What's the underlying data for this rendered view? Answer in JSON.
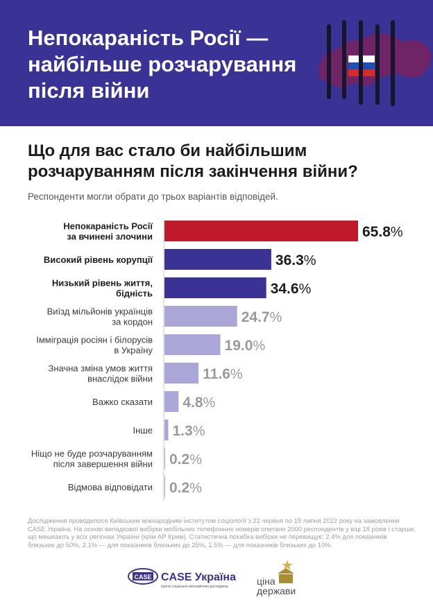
{
  "header": {
    "title_lines": [
      "Непокараність Росії —",
      "найбільше розчарування",
      "після війни"
    ]
  },
  "question": {
    "lines": [
      "Що для вас стало би найбільшим",
      "розчаруванням після закінчення війни?"
    ],
    "subtitle": "Респонденти могли обрати до трьох варіантів відповідей."
  },
  "chart_data": {
    "type": "bar",
    "orientation": "horizontal",
    "title": "Що для вас стало би найбільшим розчаруванням після закінчення війни?",
    "unit": "%",
    "categories": [
      [
        "Непокараність Росії",
        "за вчинені злочини"
      ],
      [
        "Високий рівень корупції"
      ],
      [
        "Низький рівень життя,",
        "бідність"
      ],
      [
        "Виїзд мільйонів українців",
        "за кордон"
      ],
      [
        "Імміграція росіян і білорусів",
        "в Україну"
      ],
      [
        "Значна зміна умов життя",
        "внаслідок війни"
      ],
      [
        "Важко сказати"
      ],
      [
        "Інше"
      ],
      [
        "Ніщо не буде розчаруванням",
        "після завершення війни"
      ],
      [
        "Відмова відповідати"
      ]
    ],
    "values": [
      65.8,
      36.3,
      34.6,
      24.7,
      19.0,
      11.6,
      4.8,
      1.3,
      0.2,
      0.2
    ],
    "value_labels": [
      "65.8",
      "36.3",
      "34.6",
      "24.7",
      "19.0",
      "11.6",
      "4.8",
      "1.3",
      "0.2",
      "0.2"
    ],
    "emphasis": [
      "top",
      "high",
      "high",
      "low",
      "low",
      "low",
      "low",
      "low",
      "low",
      "low"
    ],
    "xlim": [
      0,
      65.8
    ],
    "colors": {
      "top": "#be1a2c",
      "high": "#3a3294",
      "low": "#aba6d8"
    },
    "label_colors": {
      "top": "#1c1c1c",
      "high": "#1c1c1c",
      "low": "#9a9a9a"
    }
  },
  "footnote": {
    "lines": [
      "Дослідження проводилося Київським міжнародним інститутом соціології з 22 червня по 19 липня 2022 року на замовлення",
      "CASE Україна. На основі випадкової вибірки мобільних телефонних номерів опитано 2000 респондентів у віці 18 років і старше,",
      "що мешкають у всіх регіонах України (крім АР Крим). Статистична похибка вибірки не перевищує: 2.4% для показників",
      "близьких до 50%, 2.1% — для показників близьких до 25%, 1.5% — для показників близьких до 10%."
    ]
  },
  "logos": {
    "case_badge": "CASE",
    "case_name": "CASE Україна",
    "case_tagline": "Центр соціально-економічних досліджень",
    "tsina_line1": "ціна",
    "tsina_line2": "держави"
  }
}
